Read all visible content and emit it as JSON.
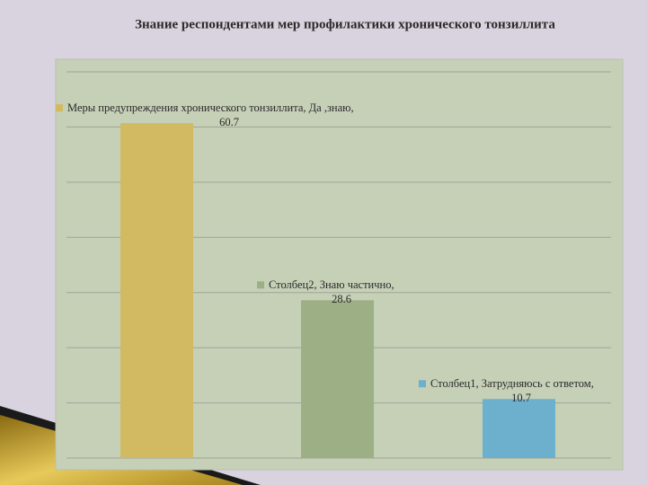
{
  "chart_data": {
    "type": "bar",
    "title": "Знание респондентами мер профилактики хронического тонзиллита",
    "series": [
      {
        "name": "Меры предупреждения хронического тонзиллита, Да ,знаю,",
        "color": "#d1ba62",
        "values": [
          60.7
        ]
      },
      {
        "name": "Столбец2, Знаю частично,",
        "color": "#9daf85",
        "values": [
          28.6
        ]
      },
      {
        "name": "Столбец1, Затрудняюсь с ответом,",
        "color": "#6db0cd",
        "values": [
          10.7
        ]
      }
    ],
    "ylim": [
      0,
      70
    ],
    "yticks": [
      0,
      10,
      20,
      30,
      40,
      50,
      60,
      70
    ],
    "grid": true
  }
}
